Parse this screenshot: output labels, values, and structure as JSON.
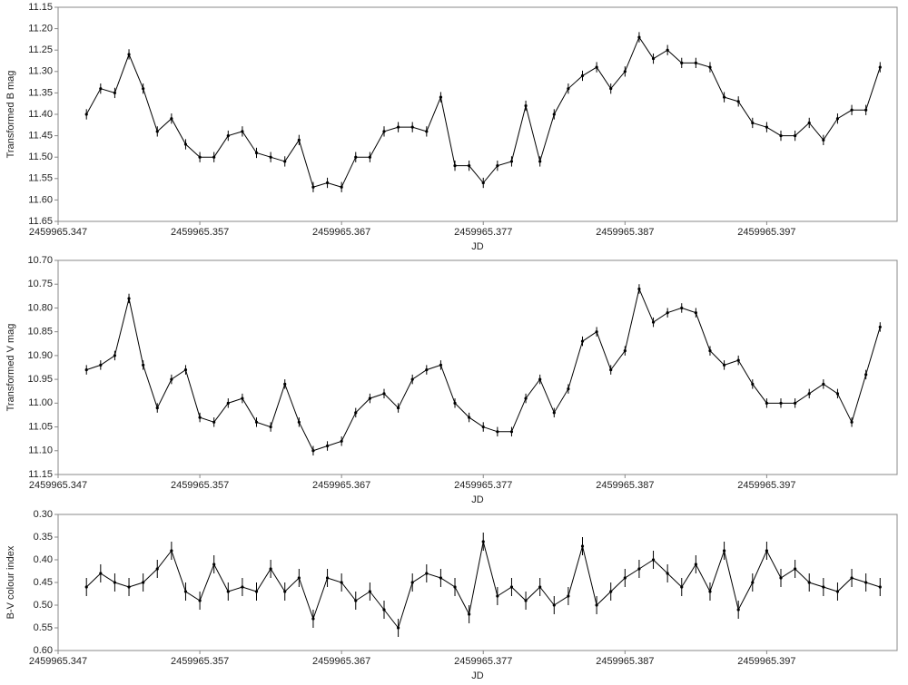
{
  "chart_data": [
    {
      "type": "line",
      "y_label": "Transformed  B mag",
      "x_label": "JD",
      "color": "#000000",
      "yerr": 0.012,
      "x": [
        2459965.349,
        2459965.35,
        2459965.351,
        2459965.352,
        2459965.353,
        2459965.354,
        2459965.355,
        2459965.356,
        2459965.357,
        2459965.358,
        2459965.359,
        2459965.36,
        2459965.361,
        2459965.362,
        2459965.363,
        2459965.364,
        2459965.365,
        2459965.366,
        2459965.367,
        2459965.368,
        2459965.369,
        2459965.37,
        2459965.371,
        2459965.372,
        2459965.373,
        2459965.374,
        2459965.375,
        2459965.376,
        2459965.377,
        2459965.378,
        2459965.379,
        2459965.38,
        2459965.381,
        2459965.382,
        2459965.383,
        2459965.384,
        2459965.385,
        2459965.386,
        2459965.387,
        2459965.388,
        2459965.389,
        2459965.39,
        2459965.391,
        2459965.392,
        2459965.393,
        2459965.394,
        2459965.395,
        2459965.396,
        2459965.397,
        2459965.398,
        2459965.399,
        2459965.4,
        2459965.401,
        2459965.402,
        2459965.403,
        2459965.404,
        2459965.405
      ],
      "values": [
        11.4,
        11.34,
        11.35,
        11.26,
        11.34,
        11.44,
        11.41,
        11.47,
        11.5,
        11.5,
        11.45,
        11.44,
        11.49,
        11.5,
        11.51,
        11.46,
        11.57,
        11.56,
        11.57,
        11.5,
        11.5,
        11.44,
        11.43,
        11.43,
        11.44,
        11.36,
        11.52,
        11.52,
        11.56,
        11.52,
        11.51,
        11.38,
        11.51,
        11.4,
        11.34,
        11.31,
        11.29,
        11.34,
        11.3,
        11.22,
        11.27,
        11.25,
        11.28,
        11.28,
        11.29,
        11.36,
        11.37,
        11.42,
        11.43,
        11.45,
        11.45,
        11.42,
        11.46,
        11.41,
        11.39,
        11.39,
        11.29
      ],
      "xlim": [
        2459965.347,
        2459965.4062
      ],
      "xticks": [
        2459965.347,
        2459965.357,
        2459965.367,
        2459965.377,
        2459965.387,
        2459965.397
      ],
      "ylim": [
        11.65,
        11.15
      ],
      "yticks": [
        11.15,
        {
          "value": 11.2,
          "label": "11.20"
        },
        11.25,
        {
          "value": 11.3,
          "label": "11.30"
        },
        11.35,
        {
          "value": 11.4,
          "label": "11.40"
        },
        11.45,
        {
          "value": 11.5,
          "label": "11.50"
        },
        11.55,
        {
          "value": 11.6,
          "label": "11.60"
        },
        11.65
      ]
    },
    {
      "type": "line",
      "y_label": "Transformed  V mag",
      "x_label": "JD",
      "color": "#000000",
      "yerr": 0.01,
      "x": [
        2459965.349,
        2459965.35,
        2459965.351,
        2459965.352,
        2459965.353,
        2459965.354,
        2459965.355,
        2459965.356,
        2459965.357,
        2459965.358,
        2459965.359,
        2459965.36,
        2459965.361,
        2459965.362,
        2459965.363,
        2459965.364,
        2459965.365,
        2459965.366,
        2459965.367,
        2459965.368,
        2459965.369,
        2459965.37,
        2459965.371,
        2459965.372,
        2459965.373,
        2459965.374,
        2459965.375,
        2459965.376,
        2459965.377,
        2459965.378,
        2459965.379,
        2459965.38,
        2459965.381,
        2459965.382,
        2459965.383,
        2459965.384,
        2459965.385,
        2459965.386,
        2459965.387,
        2459965.388,
        2459965.389,
        2459965.39,
        2459965.391,
        2459965.392,
        2459965.393,
        2459965.394,
        2459965.395,
        2459965.396,
        2459965.397,
        2459965.398,
        2459965.399,
        2459965.4,
        2459965.401,
        2459965.402,
        2459965.403,
        2459965.404,
        2459965.405
      ],
      "values": [
        10.93,
        10.92,
        10.9,
        10.78,
        10.92,
        11.01,
        10.95,
        10.93,
        11.03,
        11.04,
        11.0,
        10.99,
        11.04,
        11.05,
        10.96,
        11.04,
        11.1,
        11.09,
        11.08,
        11.02,
        10.99,
        10.98,
        11.01,
        10.95,
        10.93,
        10.92,
        11.0,
        11.03,
        11.05,
        11.06,
        11.06,
        10.99,
        10.95,
        11.02,
        10.97,
        10.87,
        10.85,
        10.93,
        10.89,
        10.76,
        10.83,
        10.81,
        10.8,
        10.81,
        10.89,
        10.92,
        10.91,
        10.96,
        11.0,
        11.0,
        11.0,
        10.98,
        10.96,
        10.98,
        11.04,
        10.94,
        10.84
      ],
      "xlim": [
        2459965.347,
        2459965.4062
      ],
      "xticks": [
        2459965.347,
        2459965.357,
        2459965.367,
        2459965.377,
        2459965.387,
        2459965.397
      ],
      "ylim": [
        11.15,
        10.7
      ],
      "yticks": [
        {
          "value": 10.7,
          "label": "10.70"
        },
        10.75,
        {
          "value": 10.8,
          "label": "10.80"
        },
        10.85,
        {
          "value": 10.9,
          "label": "10.90"
        },
        10.95,
        {
          "value": 11,
          "label": "11.00"
        },
        11.05,
        {
          "value": 11.1,
          "label": "11.10"
        },
        11.15
      ]
    },
    {
      "type": "line",
      "y_label": "B-V colour index",
      "x_label": "JD",
      "color": "#000000",
      "yerr": 0.02,
      "x": [
        2459965.349,
        2459965.35,
        2459965.351,
        2459965.352,
        2459965.353,
        2459965.354,
        2459965.355,
        2459965.356,
        2459965.357,
        2459965.358,
        2459965.359,
        2459965.36,
        2459965.361,
        2459965.362,
        2459965.363,
        2459965.364,
        2459965.365,
        2459965.366,
        2459965.367,
        2459965.368,
        2459965.369,
        2459965.37,
        2459965.371,
        2459965.372,
        2459965.373,
        2459965.374,
        2459965.375,
        2459965.376,
        2459965.377,
        2459965.378,
        2459965.379,
        2459965.38,
        2459965.381,
        2459965.382,
        2459965.383,
        2459965.384,
        2459965.385,
        2459965.386,
        2459965.387,
        2459965.388,
        2459965.389,
        2459965.39,
        2459965.391,
        2459965.392,
        2459965.393,
        2459965.394,
        2459965.395,
        2459965.396,
        2459965.397,
        2459965.398,
        2459965.399,
        2459965.4,
        2459965.401,
        2459965.402,
        2459965.403,
        2459965.404,
        2459965.405
      ],
      "values": [
        0.46,
        0.43,
        0.45,
        0.46,
        0.45,
        0.42,
        0.38,
        0.47,
        0.49,
        0.41,
        0.47,
        0.46,
        0.47,
        0.42,
        0.47,
        0.44,
        0.53,
        0.44,
        0.45,
        0.49,
        0.47,
        0.51,
        0.55,
        0.45,
        0.43,
        0.44,
        0.46,
        0.52,
        0.36,
        0.48,
        0.46,
        0.49,
        0.46,
        0.5,
        0.48,
        0.37,
        0.5,
        0.47,
        0.44,
        0.42,
        0.4,
        0.43,
        0.46,
        0.41,
        0.47,
        0.38,
        0.51,
        0.45,
        0.38,
        0.44,
        0.42,
        0.45,
        0.46,
        0.47,
        0.44,
        0.45,
        0.46
      ],
      "xlim": [
        2459965.347,
        2459965.4062
      ],
      "xticks": [
        2459965.347,
        2459965.357,
        2459965.367,
        2459965.377,
        2459965.387,
        2459965.397
      ],
      "ylim": [
        0.6,
        0.3
      ],
      "yticks": [
        {
          "value": 0.3,
          "label": "0.30"
        },
        0.35,
        {
          "value": 0.4,
          "label": "0.40"
        },
        0.45,
        {
          "value": 0.5,
          "label": "0.50"
        },
        0.55,
        {
          "value": 0.6,
          "label": "0.60"
        }
      ]
    }
  ]
}
